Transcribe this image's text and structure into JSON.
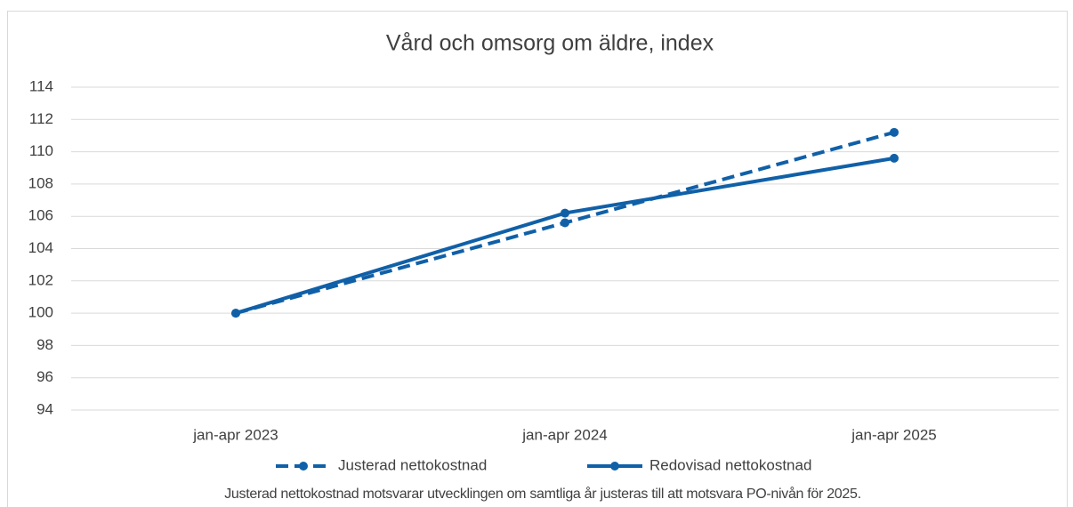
{
  "chart_data": {
    "type": "line",
    "title": "Vård och omsorg om äldre, index",
    "categories": [
      "jan-apr 2023",
      "jan-apr 2024",
      "jan-apr 2025"
    ],
    "series": [
      {
        "name": "Justerad nettokostnad",
        "color": "#1060a8",
        "dashed": true,
        "values": [
          100,
          105.6,
          111.2
        ]
      },
      {
        "name": "Redovisad nettokostnad",
        "color": "#1060a8",
        "dashed": false,
        "values": [
          100,
          106.2,
          109.6
        ]
      }
    ],
    "ylim": [
      94,
      114
    ],
    "yticks": [
      94,
      96,
      98,
      100,
      102,
      104,
      106,
      108,
      110,
      112,
      114
    ],
    "grid": true,
    "legend": "bottom",
    "note": "Justerad nettokostnad motsvarar utvecklingen om samtliga år justeras till att motsvara PO-nivån för 2025."
  }
}
